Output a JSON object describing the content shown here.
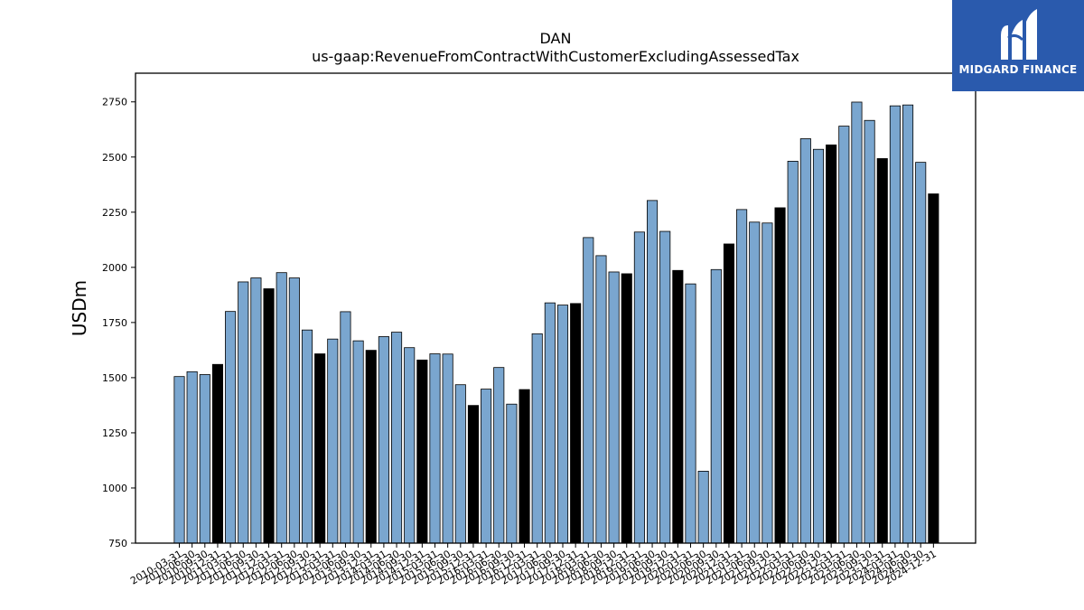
{
  "logo": {
    "text": "MIDGARD FINANCE",
    "colors": {
      "background": "#2a5aad",
      "foreground": "#ffffff"
    }
  },
  "chart_data": {
    "type": "bar",
    "title": "DAN",
    "subtitle": "us-gaap:RevenueFromContractWithCustomerExcludingAssessedTax",
    "ylabel": "USDm",
    "xlabel": "",
    "ylim": [
      750,
      2880
    ],
    "yticks": [
      750,
      1000,
      1250,
      1500,
      1750,
      2000,
      2250,
      2500,
      2750
    ],
    "grid": false,
    "colors": {
      "quarter": "#7aa6cf",
      "fiscal_year_end": "#000000",
      "edge": "#000000"
    },
    "categories": [
      "2010-03-31",
      "2010-06-30",
      "2010-09-30",
      "2010-12-31",
      "2011-03-31",
      "2011-06-30",
      "2011-09-30",
      "2011-12-31",
      "2012-03-31",
      "2012-06-30",
      "2012-09-30",
      "2012-12-31",
      "2013-03-31",
      "2013-06-30",
      "2013-09-30",
      "2013-12-31",
      "2014-03-31",
      "2014-06-30",
      "2014-09-30",
      "2014-12-31",
      "2015-03-31",
      "2015-06-30",
      "2015-09-30",
      "2015-12-31",
      "2016-03-31",
      "2016-06-30",
      "2016-09-30",
      "2016-12-31",
      "2017-03-31",
      "2017-06-30",
      "2017-09-30",
      "2017-12-31",
      "2018-03-31",
      "2018-06-30",
      "2018-09-30",
      "2018-12-31",
      "2019-03-31",
      "2019-06-30",
      "2019-09-30",
      "2019-12-31",
      "2020-03-31",
      "2020-06-30",
      "2020-09-30",
      "2020-12-31",
      "2021-03-31",
      "2021-06-30",
      "2021-09-30",
      "2021-12-31",
      "2022-03-31",
      "2022-06-30",
      "2022-09-30",
      "2022-12-31",
      "2023-03-31",
      "2023-06-30",
      "2023-09-30",
      "2023-12-31",
      "2024-03-31",
      "2024-06-30",
      "2024-09-30",
      "2024-12-31"
    ],
    "values": [
      1505,
      1527,
      1514,
      1560,
      1800,
      1934,
      1952,
      1903,
      1976,
      1952,
      1716,
      1608,
      1675,
      1799,
      1667,
      1624,
      1686,
      1706,
      1636,
      1580,
      1608,
      1607,
      1468,
      1374,
      1448,
      1546,
      1380,
      1446,
      1699,
      1839,
      1829,
      1836,
      2135,
      2053,
      1979,
      1971,
      2160,
      2303,
      2163,
      1986,
      1925,
      1076,
      1990,
      2106,
      2262,
      2205,
      2201,
      2270,
      2481,
      2583,
      2535,
      2555,
      2640,
      2749,
      2666,
      2493,
      2732,
      2736,
      2476,
      2333
    ],
    "fiscal_year_end": [
      false,
      false,
      false,
      true,
      false,
      false,
      false,
      true,
      false,
      false,
      false,
      true,
      false,
      false,
      false,
      true,
      false,
      false,
      false,
      true,
      false,
      false,
      false,
      true,
      false,
      false,
      false,
      true,
      false,
      false,
      false,
      true,
      false,
      false,
      false,
      true,
      false,
      false,
      false,
      true,
      false,
      false,
      false,
      true,
      false,
      false,
      false,
      true,
      false,
      false,
      false,
      true,
      false,
      false,
      false,
      true,
      false,
      false,
      false,
      true
    ]
  }
}
